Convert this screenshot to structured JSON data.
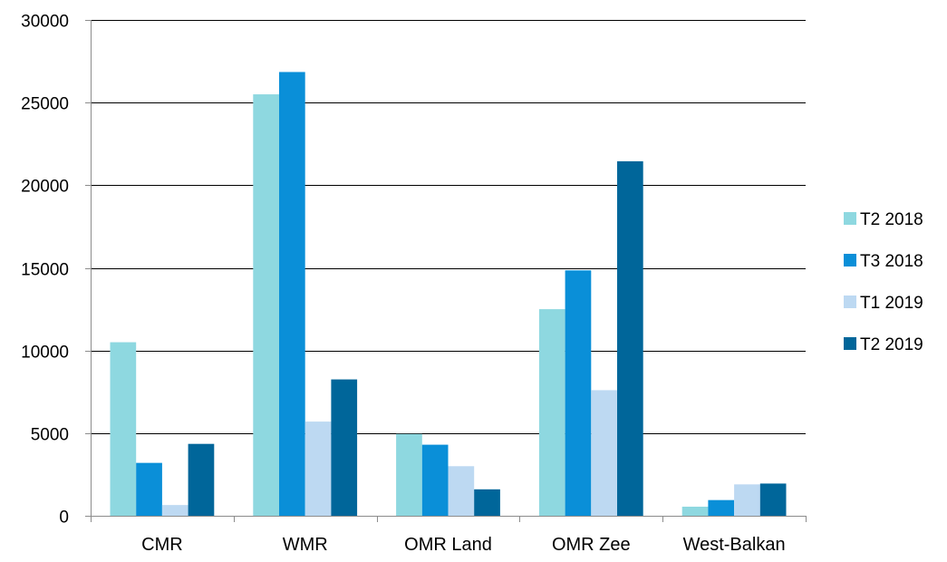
{
  "chart_data": {
    "type": "bar",
    "title": "",
    "xlabel": "",
    "ylabel": "",
    "categories": [
      "CMR",
      "WMR",
      "OMR Land",
      "OMR Zee",
      "West-Balkan"
    ],
    "series": [
      {
        "name": "T2 2018",
        "color": "#8ED8E0",
        "values": [
          10500,
          25500,
          4950,
          12500,
          550
        ]
      },
      {
        "name": "T3 2018",
        "color": "#0A8FD8",
        "values": [
          3200,
          26850,
          4300,
          14850,
          950
        ]
      },
      {
        "name": "T1 2019",
        "color": "#BDD9F2",
        "values": [
          650,
          5700,
          3000,
          7600,
          1900
        ]
      },
      {
        "name": "T2 2019",
        "color": "#00669A",
        "values": [
          4350,
          8250,
          1600,
          21450,
          1950
        ]
      }
    ],
    "ylim": [
      0,
      30000
    ],
    "yticks": [
      0,
      5000,
      10000,
      15000,
      20000,
      25000,
      30000
    ],
    "grid": true,
    "legend_position": "right"
  }
}
